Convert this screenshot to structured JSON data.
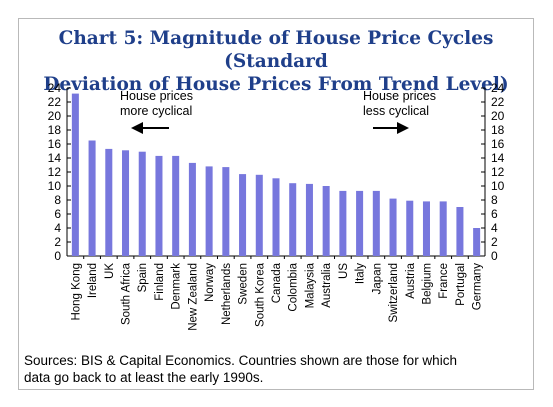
{
  "title": {
    "line1": "Chart 5: Magnitude of House Price Cycles (Standard",
    "line2": "Deviation of House Prices From Trend Level)"
  },
  "source": {
    "line1": "Sources: BIS & Capital Economics. Countries shown are those for which",
    "line2": "data go back to at least the early 1990s."
  },
  "annotations": {
    "left_line1": "House prices",
    "left_line2": "more cyclical",
    "right_line1": "House prices",
    "right_line2": "less cyclical"
  },
  "colors": {
    "bar": "#7777dd",
    "title": "#1f3f8a",
    "frame": "#b9b9b9"
  },
  "chart_data": {
    "type": "bar",
    "title": "Chart 5: Magnitude of House Price Cycles (Standard Deviation of House Prices From Trend Level)",
    "xlabel": "",
    "ylabel": "",
    "categories": [
      "Hong Kong",
      "Ireland",
      "UK",
      "South Africa",
      "Spain",
      "Finland",
      "Denmark",
      "New Zealand",
      "Norway",
      "Netherlands",
      "Sweden",
      "South Korea",
      "Canada",
      "Colombia",
      "Malaysia",
      "Australia",
      "US",
      "Italy",
      "Japan",
      "Switzerland",
      "Austria",
      "Belgium",
      "France",
      "Portugal",
      "Germany"
    ],
    "values": [
      23.2,
      16.5,
      15.3,
      15.1,
      14.9,
      14.3,
      14.3,
      13.3,
      12.8,
      12.7,
      11.7,
      11.6,
      11.1,
      10.4,
      10.3,
      10.0,
      9.3,
      9.3,
      9.3,
      8.2,
      7.9,
      7.8,
      7.8,
      7.0,
      4.0
    ],
    "ylim": [
      0,
      24
    ],
    "yticks": [
      0,
      2,
      4,
      6,
      8,
      10,
      12,
      14,
      16,
      18,
      20,
      22,
      24
    ],
    "right_axis_mirrors_left": true,
    "grid": false,
    "legend": "none"
  }
}
